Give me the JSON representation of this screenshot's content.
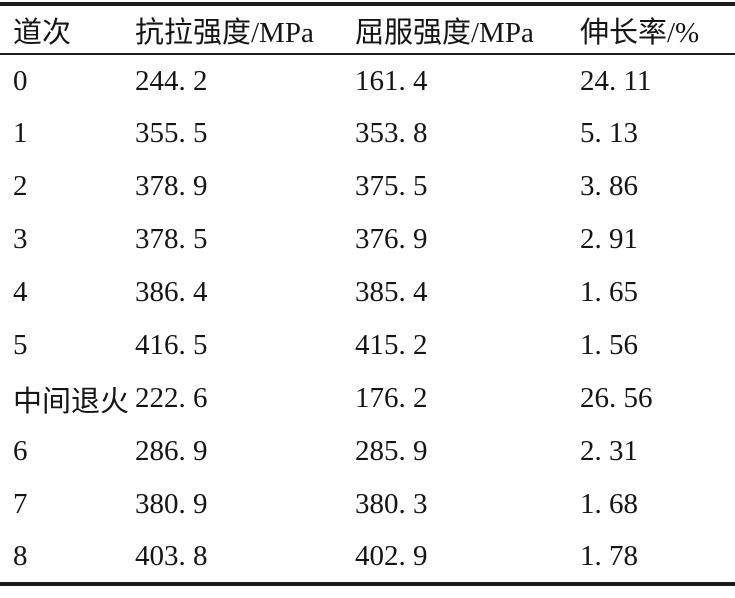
{
  "ink_color": "#151515",
  "rule_color": "#1c1c1c",
  "table": {
    "columns": [
      {
        "label": "道次"
      },
      {
        "label": "抗拉强度/MPa"
      },
      {
        "label": "屈服强度/MPa"
      },
      {
        "label": "伸长率/%"
      }
    ],
    "rows": [
      {
        "pass": "0",
        "tensile": "244. 2",
        "yield": "161. 4",
        "elongation": "24. 11"
      },
      {
        "pass": "1",
        "tensile": "355. 5",
        "yield": "353. 8",
        "elongation": "5. 13"
      },
      {
        "pass": "2",
        "tensile": "378. 9",
        "yield": "375. 5",
        "elongation": "3. 86"
      },
      {
        "pass": "3",
        "tensile": "378. 5",
        "yield": "376. 9",
        "elongation": "2. 91"
      },
      {
        "pass": "4",
        "tensile": "386. 4",
        "yield": "385. 4",
        "elongation": "1. 65"
      },
      {
        "pass": "5",
        "tensile": "416. 5",
        "yield": "415. 2",
        "elongation": "1. 56"
      },
      {
        "pass": "中间退火",
        "tensile": "222. 6",
        "yield": "176. 2",
        "elongation": "26. 56"
      },
      {
        "pass": "6",
        "tensile": "286. 9",
        "yield": "285. 9",
        "elongation": "2. 31"
      },
      {
        "pass": "7",
        "tensile": "380. 9",
        "yield": "380. 3",
        "elongation": "1. 68"
      },
      {
        "pass": "8",
        "tensile": "403. 8",
        "yield": "402. 9",
        "elongation": "1. 78"
      }
    ]
  }
}
